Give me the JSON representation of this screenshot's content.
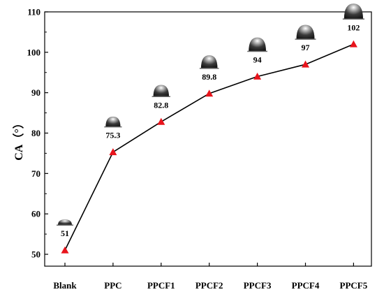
{
  "chart_data": {
    "type": "line",
    "categories": [
      "Blank",
      "PPC",
      "PPCF1",
      "PPCF2",
      "PPCF3",
      "PPCF4",
      "PPCF5"
    ],
    "values": [
      51,
      75.3,
      82.8,
      89.8,
      94,
      97,
      102
    ],
    "data_labels": [
      "51",
      "75.3",
      "82.8",
      "89.8",
      "94",
      "97",
      "102"
    ],
    "ylabel": "CA（°）",
    "xlabel": "",
    "title": "",
    "ylim": [
      50,
      110
    ],
    "yticks": [
      "50",
      "60",
      "70",
      "80",
      "90",
      "100",
      "110"
    ],
    "grid": false,
    "legend": "none",
    "line_color": "#000000",
    "marker": "triangle",
    "marker_color": "#e8141c",
    "droplet_icon": "water-droplet-contact-angle-icon"
  }
}
